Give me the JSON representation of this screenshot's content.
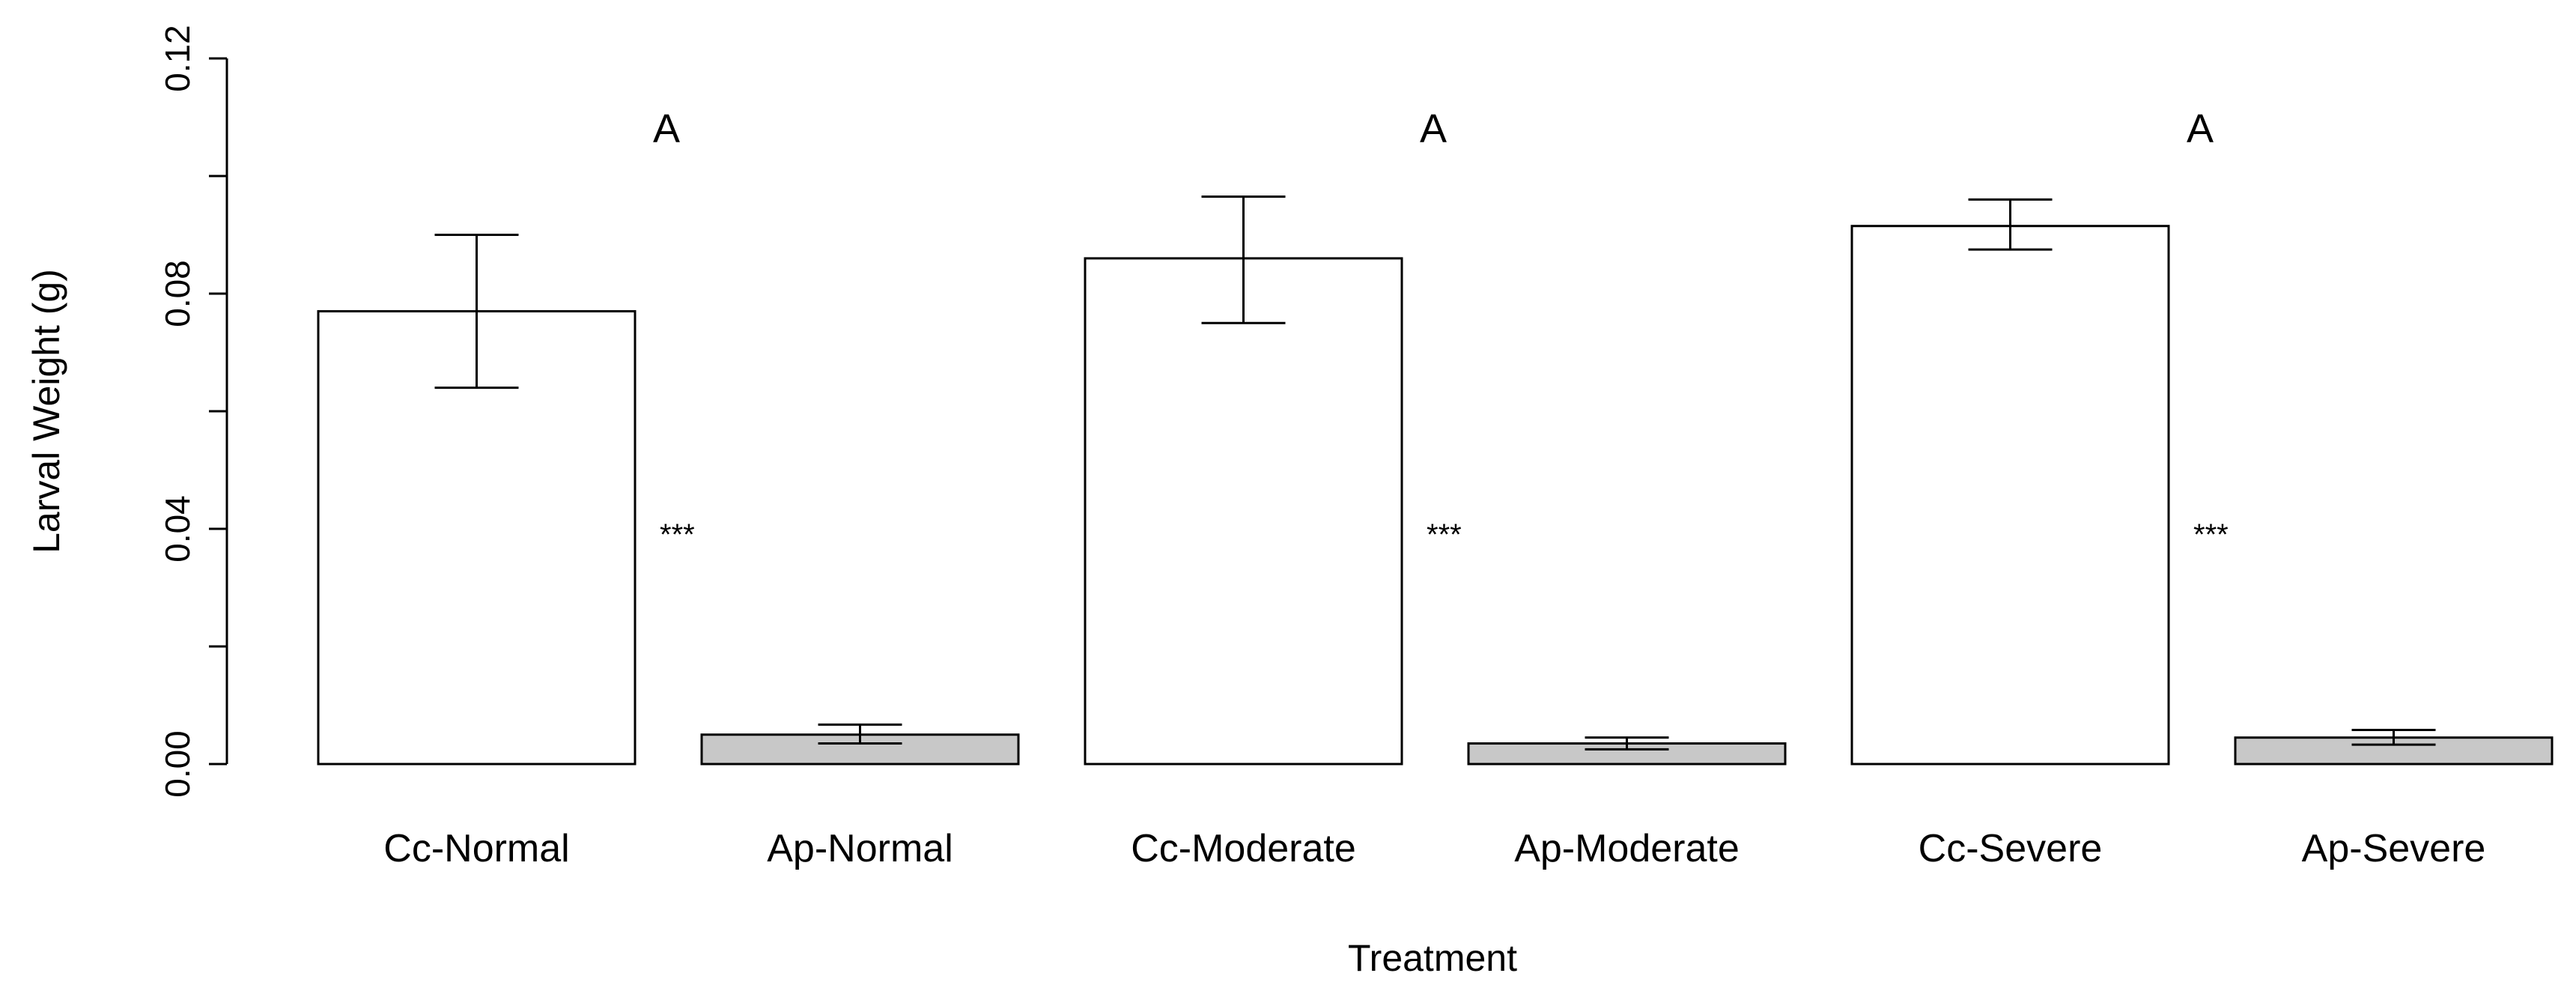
{
  "chart_data": {
    "type": "bar",
    "xlabel": "Treatment",
    "ylabel": "Larval Weight (g)",
    "ylim": [
      0,
      0.12
    ],
    "yticks": [
      "0.00",
      "0.04",
      "0.08",
      "0.12"
    ],
    "yticks_values": [
      0,
      0.04,
      0.08,
      0.12
    ],
    "grid": false,
    "categories": [
      "Cc-Normal",
      "Ap-Normal",
      "Cc-Moderate",
      "Ap-Moderate",
      "Cc-Severe",
      "Ap-Severe"
    ],
    "values": [
      0.077,
      0.005,
      0.086,
      0.0035,
      0.0915,
      0.0045
    ],
    "error_low": [
      0.064,
      0.0035,
      0.075,
      0.0025,
      0.0875,
      0.0033
    ],
    "error_high": [
      0.09,
      0.0067,
      0.0965,
      0.0045,
      0.096,
      0.0058
    ],
    "bar_colors": [
      "#ffffff",
      "#c8c8c8",
      "#ffffff",
      "#c8c8c8",
      "#ffffff",
      "#c8c8c8"
    ],
    "annotations": [
      {
        "text": "A",
        "category_index": 0,
        "y": 0.108
      },
      {
        "text": "A",
        "category_index": 2,
        "y": 0.108
      },
      {
        "text": "A",
        "category_index": 4,
        "y": 0.108
      },
      {
        "text": "***",
        "between": [
          0,
          1
        ],
        "y": 0.039
      },
      {
        "text": "***",
        "between": [
          2,
          3
        ],
        "y": 0.039
      },
      {
        "text": "***",
        "between": [
          4,
          5
        ],
        "y": 0.039
      }
    ]
  }
}
